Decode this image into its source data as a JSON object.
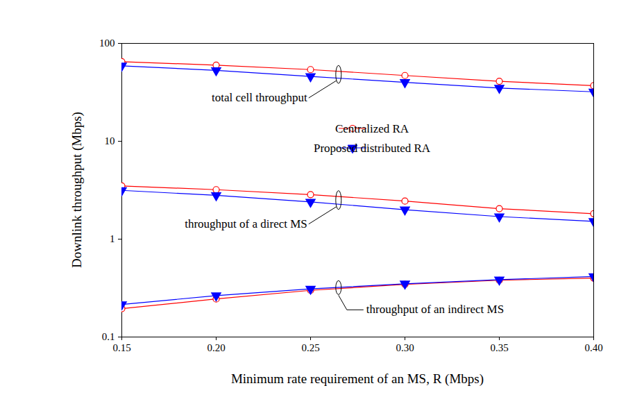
{
  "chart_data": {
    "type": "line",
    "x_label": "Minimum rate requirement of an MS, R (Mbps)",
    "y_label": "Downlink throughput (Mbps)",
    "x": [
      0.15,
      0.2,
      0.25,
      0.3,
      0.35,
      0.4
    ],
    "xlim": [
      0.15,
      0.4
    ],
    "xticks": [
      0.15,
      {
        "value": 0.2,
        "label": "0.20"
      },
      0.25,
      {
        "value": 0.3,
        "label": "0.30"
      },
      0.35,
      {
        "value": 0.4,
        "label": "0.40"
      }
    ],
    "ylim": [
      0.1,
      100
    ],
    "yticks": [
      0.1,
      1,
      10,
      100
    ],
    "log": "y",
    "grid": false,
    "legend": "right",
    "groups": [
      "total cell throughput",
      "throughput of a direct MS",
      "throughput of an indirect MS"
    ],
    "series": [
      {
        "name": "Centralized RA",
        "color": "#ff0000",
        "marker": "circle",
        "line_style": "solid",
        "values": [
          [
            65,
            60,
            54,
            47,
            41,
            37
          ],
          [
            3.5,
            3.2,
            2.85,
            2.45,
            2.05,
            1.82
          ],
          [
            0.195,
            0.245,
            0.3,
            0.345,
            0.38,
            0.4
          ]
        ]
      },
      {
        "name": "Proposed distributed RA",
        "color": "#0000ff",
        "marker": "triangle-down",
        "line_style": "solid",
        "values": [
          [
            59,
            53,
            46,
            40,
            35,
            32
          ],
          [
            3.15,
            2.8,
            2.4,
            2.0,
            1.7,
            1.52
          ],
          [
            0.215,
            0.265,
            0.31,
            0.35,
            0.385,
            0.415
          ]
        ]
      }
    ]
  }
}
